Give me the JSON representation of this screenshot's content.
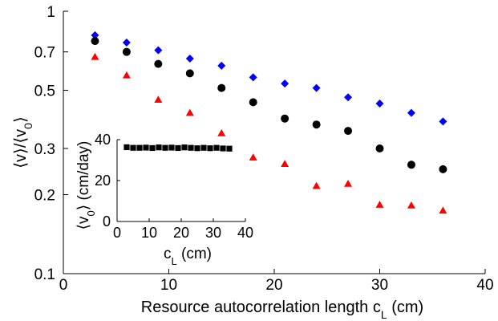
{
  "chart_data": [
    {
      "type": "scatter",
      "title": "",
      "xlabel": "Resource autocorrelation length c",
      "xlabel_sub": "L",
      "xlabel_unit": " (cm)",
      "ylabel_parts": [
        "⟨v⟩/⟨v",
        "0",
        "⟩"
      ],
      "xlim": [
        0,
        40
      ],
      "ylim": [
        0.1,
        1
      ],
      "yscale": "log",
      "grid": false,
      "xticks": [
        0,
        10,
        20,
        30,
        40
      ],
      "xtick_labels": [
        "0",
        "10",
        "20",
        "30",
        "40"
      ],
      "yticks": [
        0.1,
        0.2,
        0.3,
        0.5,
        0.7,
        1
      ],
      "ytick_labels": [
        "0.1",
        "0.2",
        "0.3",
        "0.5",
        "0.7",
        "1"
      ],
      "series": [
        {
          "marker": "diamond",
          "color": "#0000ff",
          "x": [
            3,
            6,
            9,
            12,
            15,
            18,
            21,
            24,
            27,
            30,
            33,
            36
          ],
          "y": [
            0.81,
            0.76,
            0.71,
            0.66,
            0.62,
            0.56,
            0.53,
            0.51,
            0.47,
            0.445,
            0.41,
            0.38
          ]
        },
        {
          "marker": "circle",
          "color": "#000000",
          "x": [
            3,
            6,
            9,
            12,
            15,
            18,
            21,
            24,
            27,
            30,
            33,
            36
          ],
          "y": [
            0.77,
            0.7,
            0.63,
            0.58,
            0.51,
            0.45,
            0.39,
            0.37,
            0.35,
            0.3,
            0.26,
            0.25
          ]
        },
        {
          "marker": "triangle",
          "color": "#ff0000",
          "x": [
            3,
            6,
            9,
            12,
            15,
            18,
            21,
            24,
            27,
            30,
            33,
            36
          ],
          "y": [
            0.67,
            0.57,
            0.46,
            0.41,
            0.343,
            0.277,
            0.262,
            0.216,
            0.22,
            0.183,
            0.182,
            0.174
          ]
        }
      ]
    },
    {
      "type": "scatter",
      "title": "",
      "xlabel": "c",
      "xlabel_sub": "L",
      "xlabel_unit": " (cm)",
      "ylabel_parts": [
        "⟨v",
        "0",
        "⟩ (cm/day)"
      ],
      "xlim": [
        0,
        40
      ],
      "ylim": [
        0,
        40
      ],
      "grid": false,
      "xticks": [
        0,
        10,
        20,
        30,
        40
      ],
      "xtick_labels": [
        "0",
        "10",
        "20",
        "30",
        "40"
      ],
      "yticks": [
        0,
        20,
        40
      ],
      "ytick_labels": [
        "0",
        "20",
        "40"
      ],
      "series": [
        {
          "marker": "square",
          "color": "#000000",
          "x": [
            3,
            5,
            7,
            9,
            11,
            13,
            15,
            17,
            19,
            21,
            23,
            25,
            27,
            29,
            31,
            33,
            35
          ],
          "y": [
            36.3,
            36.0,
            36.0,
            36.1,
            35.9,
            36.2,
            36.0,
            36.1,
            35.9,
            36.2,
            36.0,
            35.8,
            36.0,
            35.8,
            36.0,
            35.7,
            35.6
          ]
        }
      ]
    }
  ]
}
